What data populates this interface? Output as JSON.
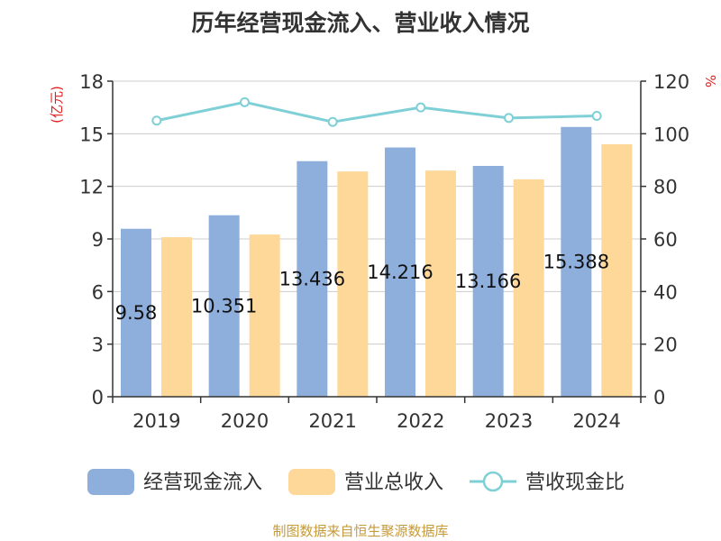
{
  "chart_data": {
    "type": "bar",
    "title": "历年经营现金流入、营业收入情况",
    "categories": [
      "2019",
      "2020",
      "2021",
      "2022",
      "2023",
      "2024"
    ],
    "series": [
      {
        "name": "经营现金流入",
        "type": "bar",
        "axis": "left",
        "color": "#8eaedb",
        "values": [
          9.58,
          10.351,
          13.436,
          14.216,
          13.166,
          15.388
        ]
      },
      {
        "name": "营业总收入",
        "type": "bar",
        "axis": "left",
        "color": "#fed899",
        "values": [
          9.1,
          9.25,
          12.85,
          12.9,
          12.4,
          14.4
        ]
      },
      {
        "name": "营收现金比",
        "type": "line",
        "axis": "right",
        "color": "#7fd0d6",
        "values": [
          105.0,
          112.0,
          104.5,
          110.0,
          106.0,
          106.8
        ]
      }
    ],
    "data_labels": [
      "9.58",
      "10.351",
      "13.436",
      "14.216",
      "13.166",
      "15.388"
    ],
    "y_left": {
      "label": "(亿元)",
      "ylim": [
        0,
        18
      ],
      "ticks": [
        "0",
        "3",
        "6",
        "9",
        "12",
        "15",
        "18"
      ]
    },
    "y_right": {
      "label": "%",
      "ylim": [
        0,
        120
      ],
      "ticks": [
        "0",
        "20",
        "40",
        "60",
        "80",
        "100",
        "120"
      ]
    },
    "grid": true,
    "legend": "bottom"
  },
  "source": "制图数据来自恒生聚源数据库"
}
